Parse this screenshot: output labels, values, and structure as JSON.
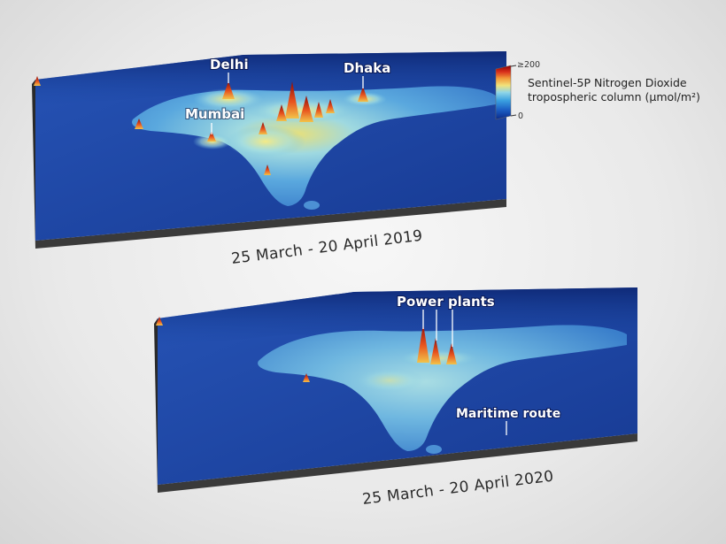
{
  "maps": {
    "top": {
      "date_label": "25 March - 20 April 2019",
      "cities": {
        "delhi": "Delhi",
        "dhaka": "Dhaka",
        "mumbai": "Mumbai"
      }
    },
    "bottom": {
      "date_label": "25 March - 20 April 2020",
      "annotations": {
        "power_plants": "Power plants",
        "maritime_route": "Maritime route"
      }
    }
  },
  "legend": {
    "title_line1": "Sentinel-5P Nitrogen Dioxide",
    "title_line2": "tropospheric column (µmol/m²)",
    "max_label": "≥200",
    "min_label": "0",
    "colors": [
      "#0b2a8a",
      "#1c5fc4",
      "#3aa0e0",
      "#8fd6e8",
      "#f2e27a",
      "#f29a3a",
      "#d9301c",
      "#8b0000"
    ]
  },
  "colors": {
    "ocean": "#1a3f9e",
    "land_low": "#3f86d0",
    "land_mid": "#7cc6e3",
    "land_high": "#e8e07a",
    "plume_peak": "#c8201a"
  }
}
